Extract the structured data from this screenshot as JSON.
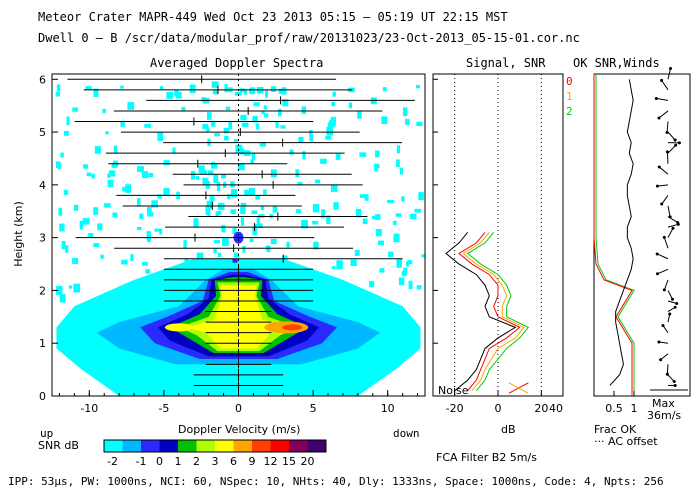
{
  "header": {
    "line1": "Meteor Crater  MAPR-449  Wed Oct 23 2013 05:15 – 05:19 UT 22:15 MST",
    "line2": "Dwell  0 – B   /scr/data/modular_prof/raw/20131023/23-Oct-2013_05-15-01.cor.nc"
  },
  "panels": {
    "spectra_title": "Averaged Doppler Spectra",
    "snr_title": "Signal, SNR",
    "ok_title": "OK SNR,Winds",
    "noise_label": "Noise",
    "snr_xlabel": "dB",
    "ok_xlabel_frac": "Frac OK",
    "ok_xlabel_ac": "··· AC offset",
    "max_label": "Max",
    "max_value": "36m/s",
    "fca_label": "FCA Filter B2  5m/s"
  },
  "colorbar": {
    "label": "SNR dB",
    "ticks": [
      "-2",
      "-1",
      "0",
      "1",
      "2",
      "3",
      "6",
      "9",
      "12",
      "15",
      "20"
    ],
    "colors": [
      "#00ffff",
      "#00b8ff",
      "#2a2aff",
      "#0000c0",
      "#00c000",
      "#b0ff00",
      "#ffff00",
      "#ffa500",
      "#ff4000",
      "#ff0000",
      "#800060",
      "#400070"
    ]
  },
  "legend_beams": [
    {
      "label": "0",
      "color": "#ff0000"
    },
    {
      "label": "1",
      "color": "#ffa500"
    },
    {
      "label": "2",
      "color": "#00cc00"
    }
  ],
  "axis_words": {
    "up": "up",
    "down": "down"
  },
  "footer": "IPP: 53µs, PW: 1000ns, NCI: 60, NSpec: 10, NHts: 40, Dly: 1333ns, Space: 1000ns, Code: 4, Npts: 256",
  "chart_data": {
    "type": "heatmap",
    "title": "Averaged Doppler Spectra",
    "xlabel": "Doppler Velocity (m/s)",
    "ylabel": "Height (km)",
    "xlim": [
      -12.5,
      12.5
    ],
    "ylim": [
      0,
      6.1
    ],
    "xticks": [
      -10,
      -5,
      0,
      5,
      10
    ],
    "yticks": [
      0,
      1,
      2,
      3,
      4,
      5,
      6
    ],
    "snr_panel": {
      "xlim": [
        -30,
        30
      ],
      "xticks": [
        -20,
        0,
        20
      ],
      "heights": [
        0.1,
        0.3,
        0.5,
        0.7,
        0.9,
        1.1,
        1.3,
        1.5,
        1.7,
        1.9,
        2.1,
        2.3,
        2.5,
        2.7,
        2.9,
        3.1
      ],
      "beam0": [
        -14,
        -10,
        -8,
        -6,
        -4,
        4,
        10,
        0,
        -2,
        0,
        0,
        -4,
        -12,
        -18,
        -10,
        -6
      ],
      "beam1": [
        -12,
        -8,
        -6,
        -3,
        0,
        8,
        12,
        2,
        2,
        4,
        2,
        -2,
        -10,
        -16,
        -8,
        -4
      ],
      "beam2": [
        -10,
        -6,
        -4,
        0,
        4,
        10,
        14,
        4,
        4,
        6,
        4,
        0,
        -8,
        -14,
        -6,
        -2
      ],
      "signal": [
        -20,
        -14,
        -10,
        -8,
        -6,
        0,
        8,
        -4,
        -6,
        -4,
        -6,
        -10,
        -18,
        -24,
        -18,
        -14
      ]
    },
    "wind_profile": {
      "heights": [
        0.2,
        0.4,
        0.6,
        0.8,
        1.0,
        1.2,
        1.4,
        1.6,
        1.8,
        2.0,
        2.2,
        2.4,
        2.6,
        2.8,
        3.0,
        3.2,
        3.4,
        3.6,
        3.8,
        4.0,
        4.2,
        4.4,
        4.6,
        4.8,
        5.0,
        5.2,
        5.4,
        5.6,
        5.8,
        6.0
      ],
      "speed_ms": [
        3,
        8,
        10,
        9,
        8,
        7,
        6,
        6,
        8,
        10,
        12,
        14,
        15,
        14,
        12,
        12,
        14,
        13,
        12,
        12,
        14,
        15,
        13,
        14,
        12,
        13,
        14,
        15,
        14,
        13
      ]
    },
    "fraction_ok": {
      "heights": [
        0.0,
        0.5,
        1.0,
        1.5,
        2.0,
        2.2,
        2.5,
        3.0,
        4.0,
        5.0,
        6.1
      ],
      "values": [
        1.0,
        1.0,
        1.0,
        0.6,
        1.0,
        0.3,
        0.1,
        0.05,
        0.05,
        0.05,
        0.05
      ]
    },
    "colorbar_db": [
      -2,
      -1,
      0,
      1,
      2,
      3,
      6,
      9,
      12,
      15,
      20
    ]
  }
}
